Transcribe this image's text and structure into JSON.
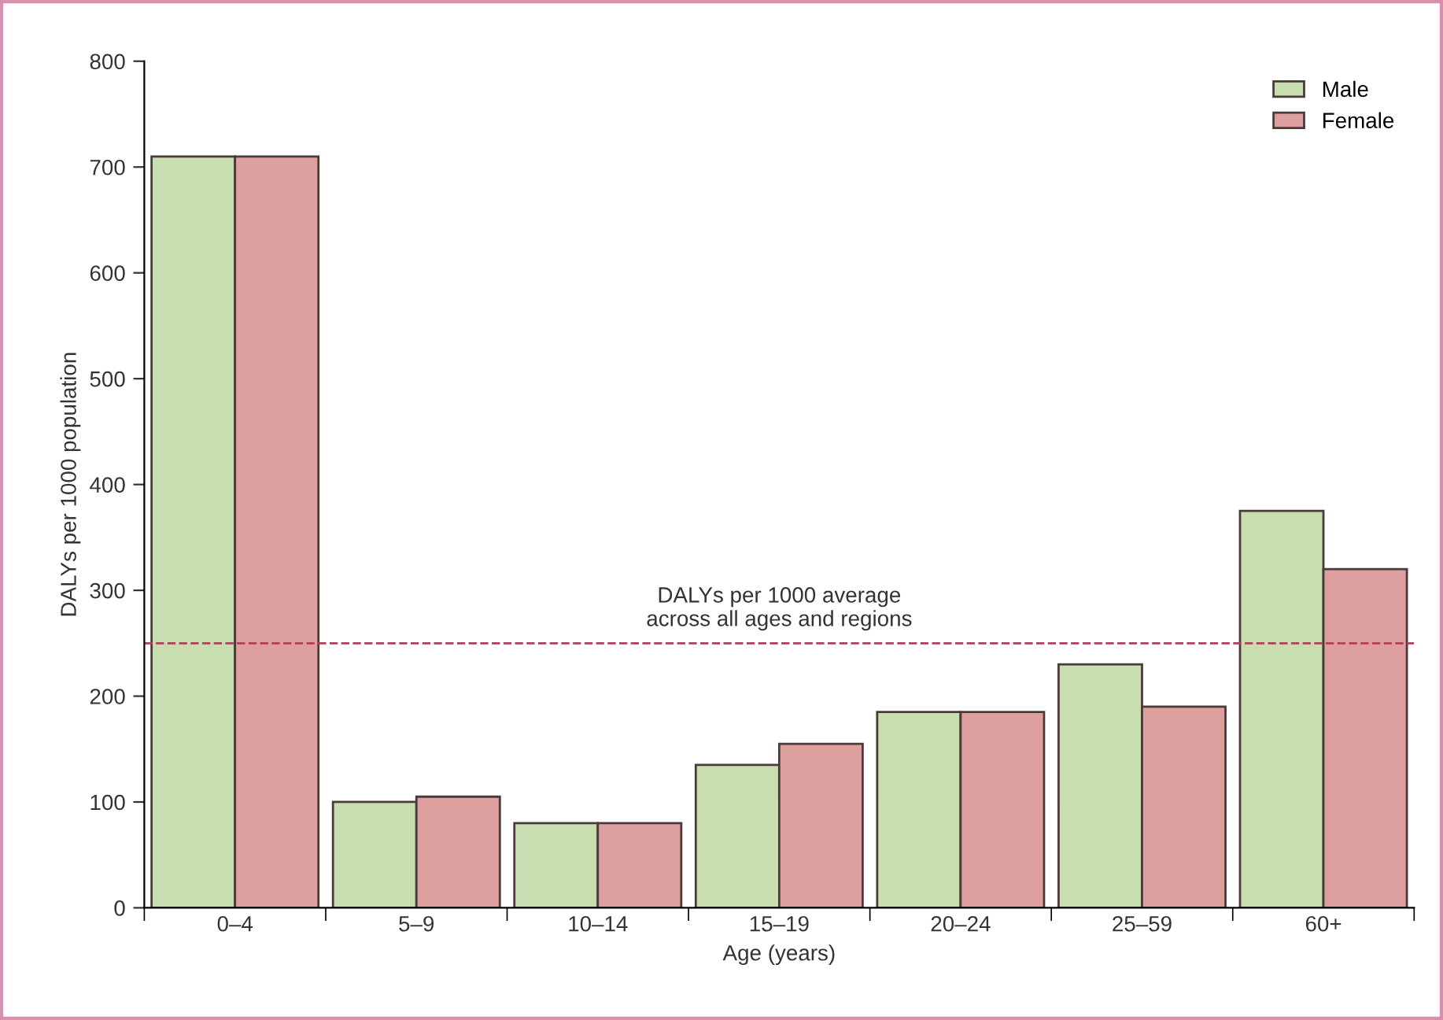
{
  "chart_data": {
    "type": "bar",
    "xlabel": "Age (years)",
    "ylabel": "DALYs per 1000 population",
    "categories": [
      "0–4",
      "5–9",
      "10–14",
      "15–19",
      "20–24",
      "25–59",
      "60+"
    ],
    "series": [
      {
        "name": "Male",
        "color": "#c8ddb0",
        "values": [
          710,
          100,
          80,
          135,
          185,
          230,
          375
        ]
      },
      {
        "name": "Female",
        "color": "#dea09e",
        "values": [
          710,
          105,
          80,
          155,
          185,
          190,
          320
        ]
      }
    ],
    "ylim": [
      0,
      800
    ],
    "yticks": [
      0,
      100,
      200,
      300,
      400,
      500,
      600,
      700,
      800
    ],
    "ref_lines": [
      {
        "axis": "y",
        "value": 250,
        "label": "DALYs per 1000 average\nacross all ages and regions",
        "color": "#b0405a",
        "line_style": "dashed"
      }
    ],
    "legend": "top right",
    "grid": false
  }
}
